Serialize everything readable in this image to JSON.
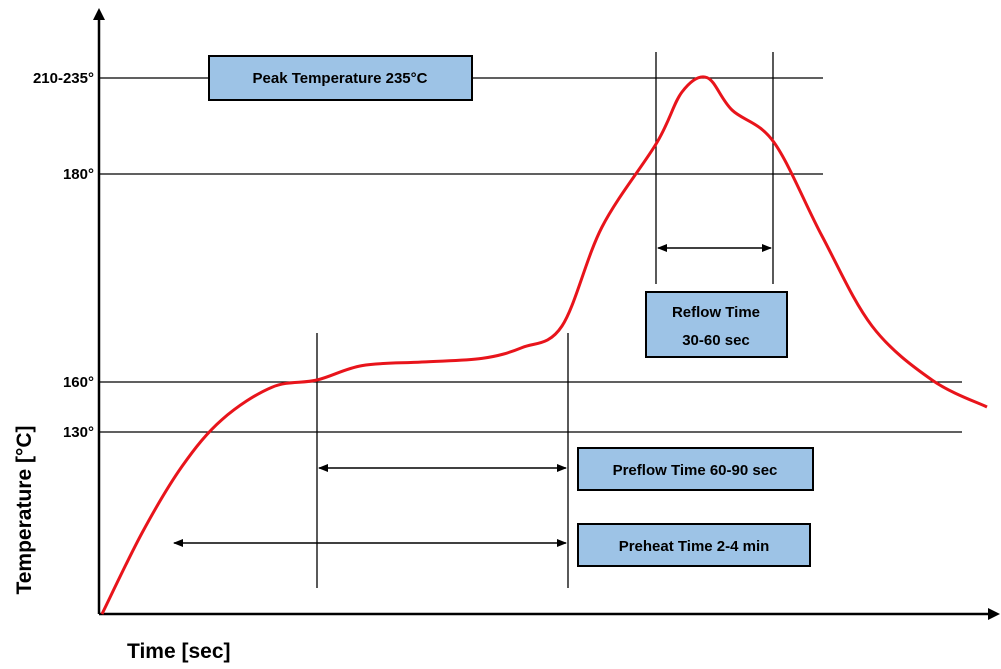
{
  "chart_data": {
    "type": "line",
    "title": "",
    "xlabel": "Time [sec]",
    "ylabel": "Temperature [°C]",
    "y_tick_labels": [
      "130°",
      "160°",
      "180°",
      "210-235°"
    ],
    "curve_color": "#e8141b",
    "box_fill": "#9dc3e6",
    "series": [
      {
        "values": [
          {
            "x": 0,
            "y": 0
          },
          {
            "x": 40,
            "y": 45
          },
          {
            "x": 80,
            "y": 82
          },
          {
            "x": 120,
            "y": 108
          },
          {
            "x": 170,
            "y": 126
          },
          {
            "x": 215,
            "y": 130
          },
          {
            "x": 260,
            "y": 138
          },
          {
            "x": 320,
            "y": 140
          },
          {
            "x": 380,
            "y": 142
          },
          {
            "x": 420,
            "y": 148
          },
          {
            "x": 460,
            "y": 160
          },
          {
            "x": 500,
            "y": 215
          },
          {
            "x": 555,
            "y": 262
          },
          {
            "x": 580,
            "y": 290
          },
          {
            "x": 605,
            "y": 298
          },
          {
            "x": 630,
            "y": 280
          },
          {
            "x": 672,
            "y": 262
          },
          {
            "x": 720,
            "y": 210
          },
          {
            "x": 770,
            "y": 160
          },
          {
            "x": 830,
            "y": 130
          },
          {
            "x": 885,
            "y": 115
          }
        ]
      }
    ],
    "annotations": {
      "peak": "Peak Temperature 235°C",
      "reflow_line1": "Reflow Time",
      "reflow_line2": "30-60 sec",
      "preflow": "Preflow Time 60-90 sec",
      "preheat": "Preheat Time 2-4 min"
    }
  }
}
